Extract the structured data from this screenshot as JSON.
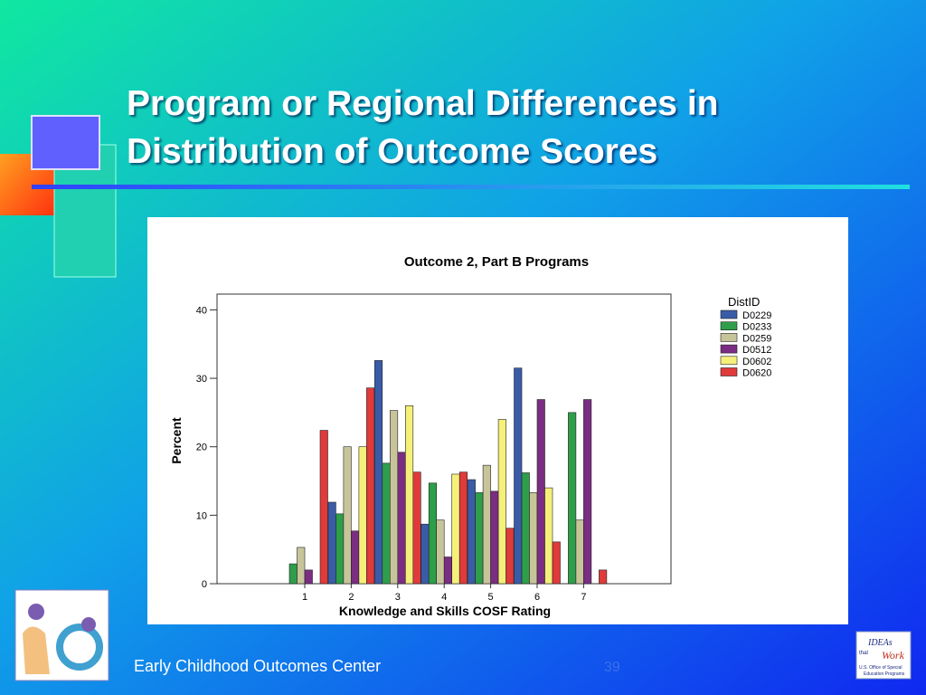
{
  "slide": {
    "title_lines": [
      "Program or Regional Differences in",
      "Distribution of Outcome Scores"
    ],
    "footer": "Early Childhood Outcomes Center",
    "page_number": "39",
    "logo_right": {
      "line1": "IDEAs",
      "line2": "that",
      "line3": "Work",
      "caption1": "U.S. Office of Special",
      "caption2": "Education Programs"
    }
  },
  "chart_data": {
    "type": "bar",
    "title": "Outcome 2, Part B Programs",
    "x_label": "Knowledge and Skills COSF Rating",
    "y_label": "Percent",
    "legend_title": "DistID",
    "categories": [
      "1",
      "2",
      "3",
      "4",
      "5",
      "6",
      "7"
    ],
    "series": [
      {
        "name": "D0229",
        "color": "#3a5ca8",
        "values": [
          0,
          11.9,
          32.6,
          8.7,
          15.2,
          31.5,
          0
        ]
      },
      {
        "name": "D0233",
        "color": "#2e9e4a",
        "values": [
          2.9,
          10.2,
          17.6,
          14.7,
          13.3,
          16.2,
          25
        ]
      },
      {
        "name": "D0259",
        "color": "#c8c49a",
        "values": [
          5.3,
          20,
          25.3,
          9.3,
          17.3,
          13.3,
          9.3
        ]
      },
      {
        "name": "D0512",
        "color": "#7a2d82",
        "values": [
          2,
          7.7,
          19.2,
          3.9,
          13.5,
          26.9,
          26.9
        ]
      },
      {
        "name": "D0602",
        "color": "#f5f07a",
        "values": [
          0,
          20,
          26,
          16,
          24,
          14,
          0
        ]
      },
      {
        "name": "D0620",
        "color": "#e03a3a",
        "values": [
          22.4,
          28.6,
          16.3,
          16.3,
          8.1,
          6.1,
          2
        ]
      }
    ],
    "ylim": [
      0,
      42.3
    ],
    "yticks": [
      0,
      10,
      20,
      30,
      40
    ],
    "legend": "right"
  }
}
